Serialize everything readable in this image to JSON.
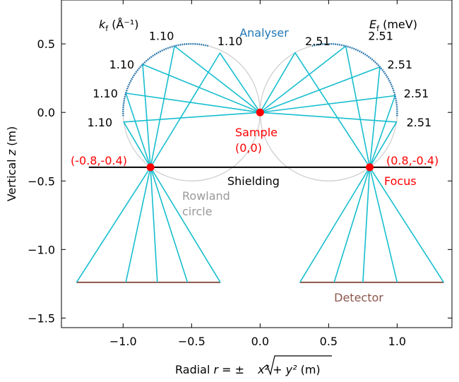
{
  "figure": {
    "xlabel_prefix": "Radial ",
    "xlabel_var": "r",
    "xlabel_eq": " = ± ",
    "xlabel_radicand": "x² + y²",
    "xlabel_unit": " (m)",
    "ylabel_prefix": "Vertical ",
    "ylabel_var": "z",
    "ylabel_unit": " (m)",
    "kf_header_var": "k",
    "kf_header_sub": "f",
    "kf_header_unit": " (Å⁻¹)",
    "ef_header_var": "E",
    "ef_header_sub": "f",
    "ef_header_unit": " (meV)",
    "analyser_label": "Analyser",
    "sample_label": "Sample",
    "sample_coord": "(0,0)",
    "focus_left_label": "(-0.8,-0.4)",
    "focus_right_coord": "(0.8,-0.4)",
    "focus_right_label": "Focus",
    "shielding_label": "Shielding",
    "rowland_label_line1": "Rowland",
    "rowland_label_line2": "circle",
    "detector_label": "Detector"
  },
  "chart_data": {
    "type": "scatter",
    "xlim": [
      -1.45,
      1.4
    ],
    "ylim": [
      -1.57,
      0.82
    ],
    "xticks": [
      -1.0,
      -0.5,
      0.0,
      0.5,
      1.0
    ],
    "xtick_labels": [
      "−1.0",
      "−0.5",
      "0.0",
      "0.5",
      "1.0"
    ],
    "yticks": [
      0.5,
      0.0,
      -0.5,
      -1.0,
      -1.5
    ],
    "ytick_labels": [
      "0.5",
      "0.0",
      "−0.5",
      "−1.0",
      "−1.5"
    ],
    "sample": [
      0,
      0
    ],
    "focus_points": [
      [
        -0.8,
        -0.4
      ],
      [
        0.8,
        -0.4
      ]
    ],
    "rowland_circles": [
      {
        "center": [
          -0.5,
          0.0
        ],
        "radius": 0.5
      },
      {
        "center": [
          0.5,
          0.0
        ],
        "radius": 0.5
      }
    ],
    "shielding": {
      "x": [
        -1.25,
        1.25
      ],
      "z": -0.4
    },
    "detectors": [
      {
        "x": [
          -1.34,
          -0.29
        ],
        "z": -1.24
      },
      {
        "x": [
          0.29,
          1.34
        ],
        "z": -1.24
      }
    ],
    "analyser_arcs": [
      {
        "center": [
          -0.5,
          0.0
        ],
        "radius": 0.5,
        "angle_start_deg": 76,
        "angle_end_deg": 183
      },
      {
        "center": [
          0.5,
          0.0
        ],
        "radius": 0.5,
        "angle_start_deg": -3,
        "angle_end_deg": 104
      }
    ],
    "left_reflections": [
      {
        "analyser": [
          -0.293,
          0.433
        ],
        "detector": [
          -0.29,
          -1.24
        ]
      },
      {
        "analyser": [
          -0.625,
          0.484
        ],
        "detector": [
          -0.53,
          -1.24
        ]
      },
      {
        "analyser": [
          -0.857,
          0.35
        ],
        "detector": [
          -0.75,
          -1.24
        ]
      },
      {
        "analyser": [
          -0.98,
          0.14
        ],
        "detector": [
          -0.98,
          -1.24
        ]
      },
      {
        "analyser": [
          -0.996,
          -0.07
        ],
        "detector": [
          -1.34,
          -1.24
        ]
      }
    ],
    "right_reflections": [
      {
        "analyser": [
          0.255,
          0.436
        ],
        "detector": [
          1.34,
          -1.24
        ]
      },
      {
        "analyser": [
          0.625,
          0.484
        ],
        "detector": [
          1.0,
          -1.24
        ]
      },
      {
        "analyser": [
          0.874,
          0.331
        ],
        "detector": [
          0.75,
          -1.24
        ]
      },
      {
        "analyser": [
          0.985,
          0.122
        ],
        "detector": [
          0.54,
          -1.24
        ]
      },
      {
        "analyser": [
          0.996,
          -0.07
        ],
        "detector": [
          0.29,
          -1.24
        ]
      }
    ],
    "kf_values": [
      "1.10",
      "1.10",
      "1.10",
      "1.10",
      "1.10",
      "1.10"
    ],
    "kf_label_anchors": [
      [
        -0.72,
        0.56
      ],
      [
        -0.22,
        0.52
      ],
      [
        -1.01,
        0.35
      ],
      [
        -1.13,
        0.14
      ],
      [
        -1.17,
        -0.07
      ],
      [
        -1.17,
        -0.07
      ]
    ],
    "ef_values": [
      "2.51",
      "2.51",
      "2.51",
      "2.51",
      "2.51",
      "2.51"
    ],
    "ef_label_anchors": [
      [
        0.42,
        0.52
      ],
      [
        0.88,
        0.56
      ],
      [
        1.02,
        0.35
      ],
      [
        1.14,
        0.14
      ],
      [
        1.16,
        -0.07
      ],
      [
        1.16,
        -0.07
      ]
    ],
    "colors": {
      "beam": "#17becf",
      "analyser": "#1f77b4",
      "rowland": "#cccccc",
      "shielding": "#000000",
      "detector": "#8c564b",
      "marker": "#ff0000",
      "red_text": "#ff0000",
      "analyser_text": "#1f77b4",
      "rowland_text": "#999999",
      "detector_text": "#8c564b"
    }
  }
}
